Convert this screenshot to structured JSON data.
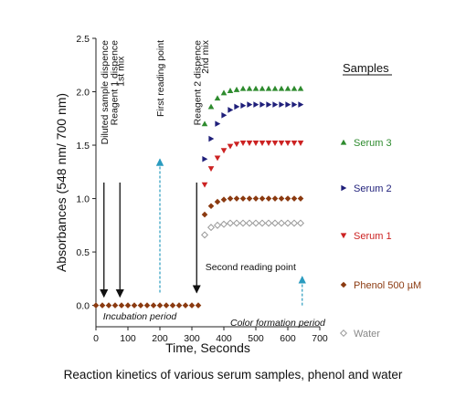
{
  "chart_data": {
    "type": "scatter",
    "xlabel": "Time, Seconds",
    "ylabel": "Absorbances (548 nm/ 700 nm)",
    "xlim": [
      0,
      700
    ],
    "ylim": [
      -0.2,
      2.5
    ],
    "xticks": [
      0,
      100,
      200,
      300,
      400,
      500,
      600,
      700
    ],
    "yticks": [
      0.0,
      0.5,
      1.0,
      1.5,
      2.0,
      2.5
    ],
    "ytick_labels": [
      "0.0",
      "0.5",
      "1.0",
      "1.5",
      "2.0",
      "2.5"
    ],
    "grid": false,
    "legend_position": "right",
    "legend_title": "Samples",
    "series": [
      {
        "name": "Serum 3",
        "color": "#2e8b2e",
        "marker": "triangle-up",
        "x": [
          0,
          20,
          40,
          60,
          80,
          100,
          120,
          140,
          160,
          180,
          200,
          220,
          240,
          260,
          280,
          300,
          320,
          340,
          360,
          380,
          400,
          420,
          440,
          460,
          480,
          500,
          520,
          540,
          560,
          580,
          600,
          620,
          640
        ],
        "y": [
          0,
          0,
          0,
          0,
          0,
          0,
          0,
          0,
          0,
          0,
          0,
          0,
          0,
          0,
          0,
          0,
          0,
          1.7,
          1.86,
          1.94,
          1.99,
          2.01,
          2.02,
          2.03,
          2.03,
          2.03,
          2.03,
          2.03,
          2.03,
          2.03,
          2.03,
          2.03,
          2.03
        ]
      },
      {
        "name": "Serum 2",
        "color": "#1f1f7a",
        "marker": "triangle-right",
        "x": [
          340,
          360,
          380,
          400,
          420,
          440,
          460,
          480,
          500,
          520,
          540,
          560,
          580,
          600,
          620,
          640
        ],
        "y": [
          1.37,
          1.56,
          1.7,
          1.78,
          1.83,
          1.86,
          1.87,
          1.88,
          1.88,
          1.88,
          1.88,
          1.88,
          1.88,
          1.88,
          1.88,
          1.88
        ]
      },
      {
        "name": "Serum 1",
        "color": "#cc2222",
        "marker": "triangle-down",
        "x": [
          340,
          360,
          380,
          400,
          420,
          440,
          460,
          480,
          500,
          520,
          540,
          560,
          580,
          600,
          620,
          640
        ],
        "y": [
          1.13,
          1.28,
          1.38,
          1.45,
          1.49,
          1.51,
          1.52,
          1.52,
          1.52,
          1.52,
          1.52,
          1.52,
          1.52,
          1.52,
          1.52,
          1.52
        ]
      },
      {
        "name": "Phenol 500 µM",
        "color": "#8b3a10",
        "marker": "diamond",
        "x": [
          340,
          360,
          380,
          400,
          420,
          440,
          460,
          480,
          500,
          520,
          540,
          560,
          580,
          600,
          620,
          640
        ],
        "y": [
          0.85,
          0.93,
          0.97,
          0.99,
          1.0,
          1.0,
          1.0,
          1.0,
          1.0,
          1.0,
          1.0,
          1.0,
          1.0,
          1.0,
          1.0,
          1.0
        ]
      },
      {
        "name": "Water",
        "color": "#999999",
        "marker": "diamond-open",
        "x": [
          340,
          360,
          380,
          400,
          420,
          440,
          460,
          480,
          500,
          520,
          540,
          560,
          580,
          600,
          620,
          640
        ],
        "y": [
          0.66,
          0.73,
          0.75,
          0.76,
          0.77,
          0.77,
          0.77,
          0.77,
          0.77,
          0.77,
          0.77,
          0.77,
          0.77,
          0.77,
          0.77,
          0.77
        ]
      }
    ],
    "annotations": [
      {
        "text": "Diluted sample dispence",
        "x": 25,
        "y_top": 2.5,
        "arrow": "solid-down",
        "arrow_x": 25,
        "arrow_from": 1.15,
        "arrow_to": 0.08
      },
      {
        "text": "Reagent 1 dispence",
        "x": 55,
        "y_top": 2.5,
        "arrow": "none"
      },
      {
        "text": "1st mix",
        "x": 75,
        "y_top": 2.35,
        "arrow": "solid-down",
        "arrow_x": 75,
        "arrow_from": 1.15,
        "arrow_to": 0.08
      },
      {
        "text": "First reading point",
        "x": 200,
        "y_top": 2.5,
        "arrow": "dashed-up",
        "arrow_x": 200,
        "arrow_from": 0.12,
        "arrow_to": 1.37
      },
      {
        "text": "Reagent 2 dispence",
        "x": 315,
        "y_top": 2.5,
        "arrow": "solid-down",
        "arrow_x": 315,
        "arrow_from": 1.15,
        "arrow_to": 0.12
      },
      {
        "text": "2nd mix",
        "x": 340,
        "y_top": 2.5,
        "arrow": "none"
      },
      {
        "text": "Second reading point",
        "x_left": 342,
        "y": 0.33,
        "arrow": "dashed-up",
        "arrow_x": 645,
        "arrow_from": 0.0,
        "arrow_to": 0.27
      },
      {
        "text": "Incubation period",
        "x_left": 22,
        "y": -0.13,
        "italic": true
      },
      {
        "text": "Color formation period",
        "x_left": 420,
        "y": -0.19,
        "italic": true
      }
    ]
  },
  "caption": "Reaction kinetics of various serum samples, phenol and water"
}
